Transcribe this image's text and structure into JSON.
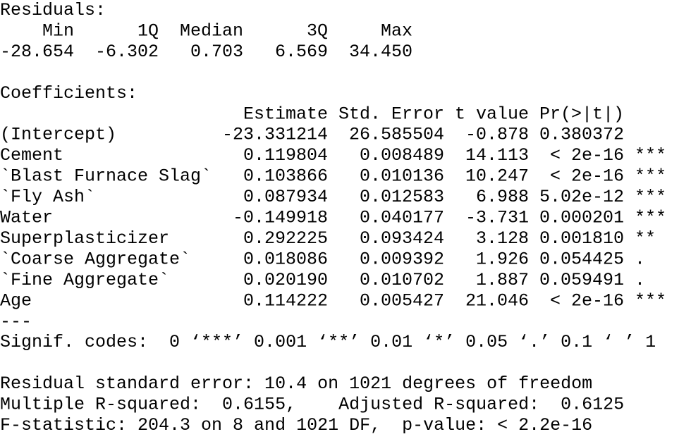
{
  "residuals": {
    "title": "Residuals:",
    "headers": [
      "Min",
      "1Q",
      "Median",
      "3Q",
      "Max"
    ],
    "values": [
      "-28.654",
      "-6.302",
      "0.703",
      "6.569",
      "34.450"
    ]
  },
  "coefficients": {
    "title": "Coefficients:",
    "headers": [
      "Estimate",
      "Std. Error",
      "t value",
      "Pr(>|t|)"
    ],
    "rows": [
      {
        "name": "(Intercept)",
        "cells": [
          "-23.331214",
          "26.585504",
          "-0.878",
          "0.380372"
        ]
      },
      {
        "name": "Cement",
        "cells": [
          "0.119804",
          "0.008489",
          "14.113",
          "< 2e-16"
        ],
        "signif": "***"
      },
      {
        "name": "`Blast Furnace Slag`",
        "cells": [
          "0.103866",
          "0.010136",
          "10.247",
          "< 2e-16"
        ],
        "signif": "***"
      },
      {
        "name": "`Fly Ash`",
        "cells": [
          "0.087934",
          "0.012583",
          "6.988",
          "5.02e-12"
        ],
        "signif": "***"
      },
      {
        "name": "Water",
        "cells": [
          "-0.149918",
          "0.040177",
          "-3.731",
          "0.000201"
        ],
        "signif": "***"
      },
      {
        "name": "Superplasticizer",
        "cells": [
          "0.292225",
          "0.093424",
          "3.128",
          "0.001810"
        ],
        "signif": "**"
      },
      {
        "name": "`Coarse Aggregate`",
        "cells": [
          "0.018086",
          "0.009392",
          "1.926",
          "0.054425"
        ],
        "signif": "."
      },
      {
        "name": "`Fine Aggregate`",
        "cells": [
          "0.020190",
          "0.010702",
          "1.887",
          "0.059491"
        ],
        "signif": "."
      },
      {
        "name": "Age",
        "cells": [
          "0.114222",
          "0.005427",
          "21.046",
          "< 2e-16"
        ],
        "signif": "***"
      }
    ],
    "separator": "---",
    "signif_codes": "Signif. codes:  0 ‘***’ 0.001 ‘**’ 0.01 ‘*’ 0.05 ‘.’ 0.1 ‘ ’ 1"
  },
  "footer": [
    "Residual standard error: 10.4 on 1021 degrees of freedom",
    "Multiple R-squared:  0.6155,\tAdjusted R-squared:  0.6125 ",
    "F-statistic: 204.3 on 8 and 1021 DF,  p-value: < 2.2e-16"
  ]
}
